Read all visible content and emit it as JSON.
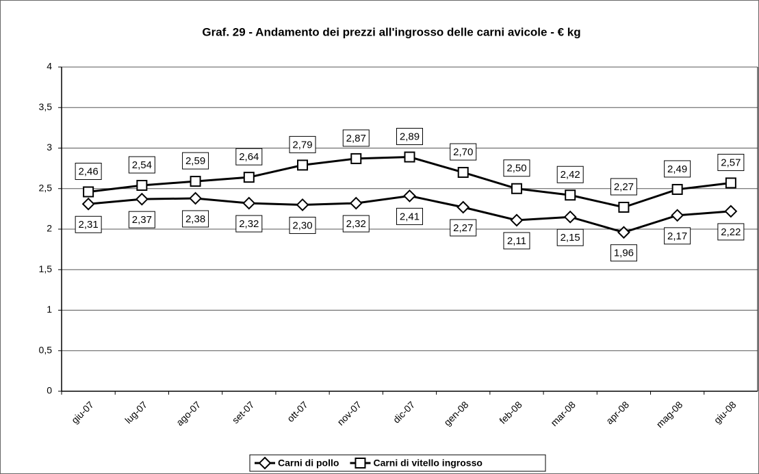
{
  "chart_data": {
    "type": "line",
    "title": "Graf. 29 - Andamento dei prezzi all'ingrosso delle carni avicole - € kg",
    "categories": [
      "giu-07",
      "lug-07",
      "ago-07",
      "set-07",
      "ott-07",
      "nov-07",
      "dic-07",
      "gen-08",
      "feb-08",
      "mar-08",
      "apr-08",
      "mag-08",
      "giu-08"
    ],
    "series": [
      {
        "name": "Carni di pollo",
        "color": "#000000",
        "marker": "diamond",
        "values": [
          2.31,
          2.37,
          2.38,
          2.32,
          2.3,
          2.32,
          2.41,
          2.27,
          2.11,
          2.15,
          1.96,
          2.17,
          2.22
        ],
        "value_labels": [
          "2,31",
          "2,37",
          "2,38",
          "2,32",
          "2,30",
          "2,32",
          "2,41",
          "2,27",
          "2,11",
          "2,15",
          "1,96",
          "2,17",
          "2,22"
        ]
      },
      {
        "name": "Carni di vitello ingrosso",
        "color": "#000000",
        "marker": "square",
        "values": [
          2.46,
          2.54,
          2.59,
          2.64,
          2.79,
          2.87,
          2.89,
          2.7,
          2.5,
          2.42,
          2.27,
          2.49,
          2.57
        ],
        "value_labels": [
          "2,46",
          "2,54",
          "2,59",
          "2,64",
          "2,79",
          "2,87",
          "2,89",
          "2,70",
          "2,50",
          "2,42",
          "2,27",
          "2,49",
          "2,57"
        ]
      }
    ],
    "ylim": [
      0,
      4
    ],
    "yticks": [
      0,
      {
        "value": 0.5,
        "label": "0,5"
      },
      1,
      {
        "value": 1.5,
        "label": "1,5"
      },
      2,
      {
        "value": 2.5,
        "label": "2,5"
      },
      3,
      {
        "value": 3.5,
        "label": "3,5"
      },
      4
    ],
    "grid": true,
    "legend": "bottom"
  }
}
